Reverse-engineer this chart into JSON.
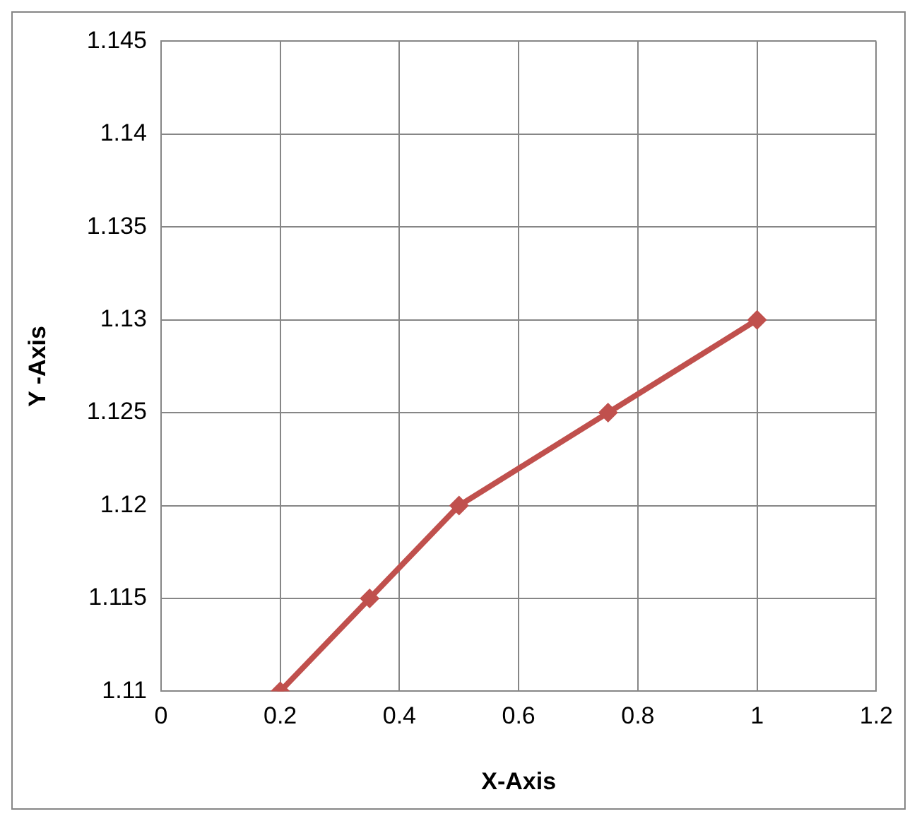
{
  "chart_data": {
    "type": "line",
    "xlabel": "X-Axis",
    "ylabel": "Y -Axis",
    "x": [
      0.2,
      0.35,
      0.5,
      0.75,
      1
    ],
    "series": [
      {
        "color": "#c0504d",
        "values": [
          1.11,
          1.115,
          1.12,
          1.125,
          1.13
        ]
      }
    ],
    "xlim": [
      0,
      1.2
    ],
    "xticks": [
      0,
      0.2,
      0.4,
      0.6,
      0.8,
      1,
      1.2
    ],
    "ylim": [
      1.11,
      1.145
    ],
    "yticks": [
      1.11,
      1.115,
      1.12,
      1.125,
      1.13,
      1.135,
      1.14,
      1.145
    ],
    "grid": true,
    "legend": false,
    "marker": "diamond",
    "line_style": "solid"
  }
}
